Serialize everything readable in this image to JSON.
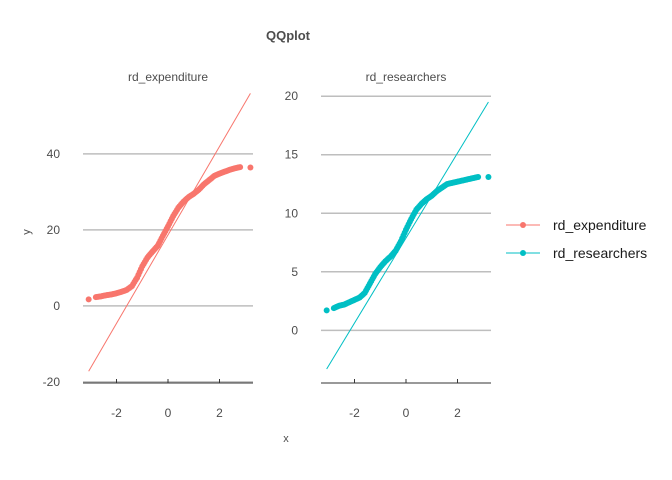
{
  "title": "QQplot",
  "chart_data": {
    "type": "scatter",
    "title": "QQplot",
    "xlabel": "x",
    "ylabel": "y",
    "grid": "horizontal major",
    "legend_position": "right",
    "facets": [
      {
        "name": "rd_expenditure",
        "color": "#F8766D",
        "xlim": [
          -3.3,
          3.3
        ],
        "ylim": [
          -20.3,
          56
        ],
        "y_ticks": [
          -20,
          0,
          20,
          40
        ],
        "x_ticks": [
          -2,
          0,
          2
        ],
        "reference_line": [
          [
            -3.08,
            -17.2
          ],
          [
            3.2,
            55.9
          ]
        ],
        "quantiles": [
          [
            -3.08,
            1.7
          ],
          [
            -2.8,
            2.3
          ],
          [
            -2.6,
            2.5
          ],
          [
            -2.4,
            2.8
          ],
          [
            -2.2,
            3.0
          ],
          [
            -2.0,
            3.3
          ],
          [
            -1.8,
            3.7
          ],
          [
            -1.6,
            4.2
          ],
          [
            -1.4,
            5.2
          ],
          [
            -1.2,
            7.4
          ],
          [
            -1.0,
            10.4
          ],
          [
            -0.8,
            12.7
          ],
          [
            -0.6,
            14.3
          ],
          [
            -0.4,
            15.8
          ],
          [
            -0.2,
            18.4
          ],
          [
            0.0,
            20.9
          ],
          [
            0.2,
            23.6
          ],
          [
            0.4,
            25.8
          ],
          [
            0.6,
            27.4
          ],
          [
            0.8,
            28.6
          ],
          [
            1.0,
            29.5
          ],
          [
            1.2,
            30.6
          ],
          [
            1.4,
            32.0
          ],
          [
            1.6,
            33.1
          ],
          [
            1.8,
            34.2
          ],
          [
            2.0,
            34.8
          ],
          [
            2.2,
            35.3
          ],
          [
            2.4,
            35.8
          ],
          [
            2.6,
            36.2
          ],
          [
            2.8,
            36.5
          ],
          [
            3.2,
            36.4
          ]
        ]
      },
      {
        "name": "rd_researchers",
        "color": "#00BFC4",
        "xlim": [
          -3.3,
          3.3
        ],
        "ylim": [
          -4.5,
          20.7
        ],
        "y_ticks": [
          0,
          5,
          10,
          15,
          20
        ],
        "x_ticks": [
          -2,
          0,
          2
        ],
        "reference_line": [
          [
            -3.08,
            -3.3
          ],
          [
            3.2,
            19.5
          ]
        ],
        "quantiles": [
          [
            -3.08,
            1.7
          ],
          [
            -2.8,
            1.9
          ],
          [
            -2.6,
            2.1
          ],
          [
            -2.4,
            2.2
          ],
          [
            -2.2,
            2.4
          ],
          [
            -2.0,
            2.6
          ],
          [
            -1.8,
            2.8
          ],
          [
            -1.6,
            3.2
          ],
          [
            -1.4,
            4.0
          ],
          [
            -1.2,
            4.8
          ],
          [
            -1.0,
            5.4
          ],
          [
            -0.8,
            5.9
          ],
          [
            -0.6,
            6.3
          ],
          [
            -0.4,
            6.8
          ],
          [
            -0.2,
            7.6
          ],
          [
            0.0,
            8.6
          ],
          [
            0.2,
            9.5
          ],
          [
            0.4,
            10.3
          ],
          [
            0.6,
            10.8
          ],
          [
            0.8,
            11.2
          ],
          [
            1.0,
            11.5
          ],
          [
            1.2,
            11.9
          ],
          [
            1.4,
            12.2
          ],
          [
            1.6,
            12.5
          ],
          [
            1.8,
            12.6
          ],
          [
            2.0,
            12.7
          ],
          [
            2.2,
            12.8
          ],
          [
            2.4,
            12.9
          ],
          [
            2.6,
            13.0
          ],
          [
            2.8,
            13.1
          ],
          [
            3.2,
            13.1
          ]
        ]
      }
    ]
  }
}
